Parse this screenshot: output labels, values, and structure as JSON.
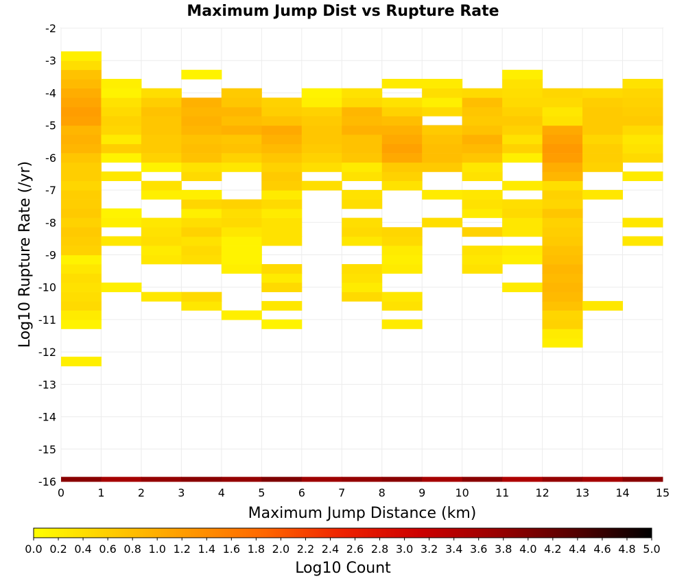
{
  "chart_data": {
    "type": "heatmap",
    "title": "Maximum Jump Dist vs Rupture Rate",
    "xlabel": "Maximum Jump Distance (km)",
    "ylabel": "Log10 Rupture Rate (/yr)",
    "xlim": [
      0,
      15
    ],
    "ylim": [
      -16,
      -2
    ],
    "x_ticks": [
      "0",
      "1",
      "2",
      "3",
      "4",
      "5",
      "6",
      "7",
      "8",
      "9",
      "10",
      "11",
      "12",
      "13",
      "14",
      "15"
    ],
    "y_ticks": [
      "-2",
      "-3",
      "-4",
      "-5",
      "-6",
      "-7",
      "-8",
      "-9",
      "-10",
      "-11",
      "-12",
      "-13",
      "-14",
      "-15",
      "-16"
    ],
    "grid": true,
    "x_bin_width_km": 1,
    "y_bin_height_log10": 0.2857,
    "colorbar": {
      "label": "Log10 Count",
      "min": 0.0,
      "max": 5.0,
      "ticks": [
        "0.0",
        "0.2",
        "0.4",
        "0.6",
        "0.8",
        "1.0",
        "1.2",
        "1.4",
        "1.6",
        "1.8",
        "2.0",
        "2.2",
        "2.4",
        "2.6",
        "2.8",
        "3.0",
        "3.2",
        "3.4",
        "3.6",
        "3.8",
        "4.0",
        "4.2",
        "4.4",
        "4.6",
        "4.8",
        "5.0"
      ],
      "colors": [
        "#ffff00",
        "#ffcc00",
        "#ff9900",
        "#ff6600",
        "#ee2200",
        "#cc0000",
        "#990000",
        "#550000",
        "#000000"
      ]
    },
    "columns": [
      {
        "x": 0.5,
        "cells": [
          [
            -12.29,
            0.2
          ],
          [
            -11.14,
            0.15
          ],
          [
            -10.86,
            0.25
          ],
          [
            -10.57,
            0.45
          ],
          [
            -10.29,
            0.4
          ],
          [
            -10.0,
            0.35
          ],
          [
            -9.71,
            0.4
          ],
          [
            -9.43,
            0.3
          ],
          [
            -9.14,
            0.15
          ],
          [
            -8.86,
            0.55
          ],
          [
            -8.57,
            0.6
          ],
          [
            -8.29,
            0.65
          ],
          [
            -8.0,
            0.55
          ],
          [
            -7.71,
            0.65
          ],
          [
            -7.43,
            0.6
          ],
          [
            -7.14,
            0.6
          ],
          [
            -6.86,
            0.5
          ],
          [
            -6.57,
            0.6
          ],
          [
            -6.29,
            0.6
          ],
          [
            -6.0,
            0.7
          ],
          [
            -5.71,
            0.9
          ],
          [
            -5.43,
            0.95
          ],
          [
            -5.14,
            0.9
          ],
          [
            -4.86,
            1.15
          ],
          [
            -4.57,
            1.2
          ],
          [
            -4.29,
            1.1
          ],
          [
            -4.0,
            1.0
          ],
          [
            -3.71,
            0.85
          ],
          [
            -3.43,
            0.75
          ],
          [
            -3.14,
            0.4
          ],
          [
            -2.86,
            0.2
          ],
          [
            -16.0,
            3.9
          ]
        ]
      },
      {
        "x": 1.5,
        "cells": [
          [
            -10.0,
            0.2
          ],
          [
            -8.57,
            0.3
          ],
          [
            -8.0,
            0.2
          ],
          [
            -7.71,
            0.15
          ],
          [
            -6.57,
            0.3
          ],
          [
            -6.0,
            0.15
          ],
          [
            -5.71,
            0.6
          ],
          [
            -5.43,
            0.25
          ],
          [
            -5.14,
            0.5
          ],
          [
            -4.86,
            0.55
          ],
          [
            -4.57,
            0.45
          ],
          [
            -4.29,
            0.35
          ],
          [
            -4.0,
            0.15
          ],
          [
            -3.71,
            0.2
          ],
          [
            -16.0,
            3.6
          ]
        ]
      },
      {
        "x": 2.5,
        "cells": [
          [
            -10.29,
            0.3
          ],
          [
            -9.14,
            0.3
          ],
          [
            -8.86,
            0.25
          ],
          [
            -8.57,
            0.4
          ],
          [
            -8.29,
            0.35
          ],
          [
            -8.0,
            0.3
          ],
          [
            -7.14,
            0.2
          ],
          [
            -6.86,
            0.35
          ],
          [
            -6.29,
            0.15
          ],
          [
            -6.0,
            0.55
          ],
          [
            -5.71,
            0.65
          ],
          [
            -5.43,
            0.65
          ],
          [
            -5.14,
            0.7
          ],
          [
            -4.86,
            0.7
          ],
          [
            -4.57,
            0.75
          ],
          [
            -4.29,
            0.6
          ],
          [
            -4.0,
            0.4
          ],
          [
            -16.0,
            3.8
          ]
        ]
      },
      {
        "x": 3.5,
        "cells": [
          [
            -10.57,
            0.3
          ],
          [
            -10.29,
            0.45
          ],
          [
            -9.14,
            0.4
          ],
          [
            -8.86,
            0.45
          ],
          [
            -8.57,
            0.35
          ],
          [
            -8.29,
            0.55
          ],
          [
            -8.0,
            0.4
          ],
          [
            -7.71,
            0.2
          ],
          [
            -7.43,
            0.5
          ],
          [
            -7.14,
            0.2
          ],
          [
            -6.57,
            0.45
          ],
          [
            -6.29,
            0.35
          ],
          [
            -6.0,
            0.75
          ],
          [
            -5.71,
            0.8
          ],
          [
            -5.43,
            0.75
          ],
          [
            -5.14,
            0.9
          ],
          [
            -4.86,
            0.95
          ],
          [
            -4.57,
            0.9
          ],
          [
            -4.29,
            0.95
          ],
          [
            -3.43,
            0.15
          ],
          [
            -16.0,
            3.9
          ]
        ]
      },
      {
        "x": 4.5,
        "cells": [
          [
            -10.86,
            0.2
          ],
          [
            -9.43,
            0.2
          ],
          [
            -9.14,
            0.15
          ],
          [
            -8.86,
            0.15
          ],
          [
            -8.57,
            0.15
          ],
          [
            -8.29,
            0.3
          ],
          [
            -8.0,
            0.45
          ],
          [
            -7.71,
            0.4
          ],
          [
            -7.43,
            0.55
          ],
          [
            -6.29,
            0.3
          ],
          [
            -6.0,
            0.55
          ],
          [
            -5.71,
            0.75
          ],
          [
            -5.43,
            0.7
          ],
          [
            -5.14,
            0.95
          ],
          [
            -4.86,
            0.8
          ],
          [
            -4.57,
            0.9
          ],
          [
            -4.29,
            0.7
          ],
          [
            -4.0,
            0.65
          ],
          [
            -16.0,
            3.8
          ]
        ]
      },
      {
        "x": 5.5,
        "cells": [
          [
            -11.14,
            0.15
          ],
          [
            -10.57,
            0.3
          ],
          [
            -10.0,
            0.45
          ],
          [
            -9.71,
            0.25
          ],
          [
            -9.43,
            0.45
          ],
          [
            -8.57,
            0.35
          ],
          [
            -8.29,
            0.35
          ],
          [
            -8.0,
            0.35
          ],
          [
            -7.71,
            0.25
          ],
          [
            -7.43,
            0.45
          ],
          [
            -7.14,
            0.25
          ],
          [
            -6.86,
            0.6
          ],
          [
            -6.57,
            0.65
          ],
          [
            -6.29,
            0.55
          ],
          [
            -6.0,
            0.7
          ],
          [
            -5.71,
            0.85
          ],
          [
            -5.43,
            0.95
          ],
          [
            -5.14,
            1.05
          ],
          [
            -4.86,
            0.75
          ],
          [
            -4.57,
            0.6
          ],
          [
            -4.29,
            0.55
          ],
          [
            -16.0,
            4.0
          ]
        ]
      },
      {
        "x": 6.5,
        "cells": [
          [
            -6.86,
            0.4
          ],
          [
            -6.29,
            0.4
          ],
          [
            -6.0,
            0.55
          ],
          [
            -5.71,
            0.65
          ],
          [
            -5.43,
            0.7
          ],
          [
            -5.14,
            0.7
          ],
          [
            -4.86,
            0.65
          ],
          [
            -4.57,
            0.55
          ],
          [
            -4.29,
            0.2
          ],
          [
            -4.0,
            0.15
          ],
          [
            -16.0,
            3.7
          ]
        ]
      },
      {
        "x": 7.5,
        "cells": [
          [
            -10.29,
            0.45
          ],
          [
            -10.0,
            0.25
          ],
          [
            -9.71,
            0.35
          ],
          [
            -9.43,
            0.4
          ],
          [
            -8.57,
            0.3
          ],
          [
            -8.29,
            0.45
          ],
          [
            -8.0,
            0.4
          ],
          [
            -7.43,
            0.4
          ],
          [
            -7.14,
            0.35
          ],
          [
            -6.57,
            0.35
          ],
          [
            -6.29,
            0.25
          ],
          [
            -6.0,
            0.7
          ],
          [
            -5.71,
            0.75
          ],
          [
            -5.43,
            0.75
          ],
          [
            -5.14,
            0.95
          ],
          [
            -4.86,
            0.85
          ],
          [
            -4.57,
            0.9
          ],
          [
            -4.29,
            0.45
          ],
          [
            -4.0,
            0.35
          ],
          [
            -16.0,
            3.8
          ]
        ]
      },
      {
        "x": 8.5,
        "cells": [
          [
            -11.14,
            0.25
          ],
          [
            -10.57,
            0.35
          ],
          [
            -10.29,
            0.3
          ],
          [
            -9.43,
            0.25
          ],
          [
            -9.14,
            0.2
          ],
          [
            -8.86,
            0.25
          ],
          [
            -8.57,
            0.45
          ],
          [
            -8.29,
            0.5
          ],
          [
            -6.86,
            0.35
          ],
          [
            -6.57,
            0.55
          ],
          [
            -6.29,
            0.65
          ],
          [
            -6.0,
            1.05
          ],
          [
            -5.71,
            1.15
          ],
          [
            -5.43,
            1.05
          ],
          [
            -5.14,
            0.95
          ],
          [
            -4.86,
            0.8
          ],
          [
            -4.57,
            0.55
          ],
          [
            -4.29,
            0.35
          ],
          [
            -3.71,
            0.25
          ],
          [
            -16.0,
            3.9
          ]
        ]
      },
      {
        "x": 9.5,
        "cells": [
          [
            -8.0,
            0.4
          ],
          [
            -7.14,
            0.25
          ],
          [
            -6.29,
            0.65
          ],
          [
            -6.0,
            0.8
          ],
          [
            -5.71,
            0.8
          ],
          [
            -5.43,
            0.75
          ],
          [
            -5.14,
            0.65
          ],
          [
            -4.57,
            0.45
          ],
          [
            -4.29,
            0.2
          ],
          [
            -4.0,
            0.4
          ],
          [
            -3.71,
            0.25
          ],
          [
            -16.0,
            3.6
          ]
        ]
      },
      {
        "x": 10.5,
        "cells": [
          [
            -9.43,
            0.35
          ],
          [
            -9.14,
            0.3
          ],
          [
            -8.86,
            0.35
          ],
          [
            -8.29,
            0.55
          ],
          [
            -7.71,
            0.25
          ],
          [
            -7.43,
            0.35
          ],
          [
            -7.14,
            0.3
          ],
          [
            -6.57,
            0.35
          ],
          [
            -6.29,
            0.3
          ],
          [
            -6.0,
            0.7
          ],
          [
            -5.71,
            0.85
          ],
          [
            -5.43,
            0.95
          ],
          [
            -5.14,
            0.75
          ],
          [
            -4.86,
            0.65
          ],
          [
            -4.57,
            0.7
          ],
          [
            -4.29,
            0.8
          ],
          [
            -4.0,
            0.45
          ],
          [
            -16.0,
            3.9
          ]
        ]
      },
      {
        "x": 11.5,
        "cells": [
          [
            -10.0,
            0.25
          ],
          [
            -9.14,
            0.2
          ],
          [
            -8.86,
            0.25
          ],
          [
            -8.29,
            0.3
          ],
          [
            -8.0,
            0.3
          ],
          [
            -7.71,
            0.45
          ],
          [
            -7.43,
            0.4
          ],
          [
            -6.86,
            0.25
          ],
          [
            -6.0,
            0.2
          ],
          [
            -5.71,
            0.55
          ],
          [
            -5.43,
            0.35
          ],
          [
            -5.14,
            0.55
          ],
          [
            -4.86,
            0.65
          ],
          [
            -4.57,
            0.55
          ],
          [
            -4.29,
            0.45
          ],
          [
            -4.0,
            0.4
          ],
          [
            -3.71,
            0.35
          ],
          [
            -3.43,
            0.2
          ],
          [
            -16.0,
            3.5
          ]
        ]
      },
      {
        "x": 12.5,
        "cells": [
          [
            -11.71,
            0.2
          ],
          [
            -11.43,
            0.25
          ],
          [
            -11.14,
            0.55
          ],
          [
            -10.86,
            0.5
          ],
          [
            -10.57,
            0.75
          ],
          [
            -10.29,
            0.85
          ],
          [
            -10.0,
            0.9
          ],
          [
            -9.71,
            0.85
          ],
          [
            -9.43,
            0.9
          ],
          [
            -9.14,
            0.8
          ],
          [
            -8.86,
            0.75
          ],
          [
            -8.57,
            0.65
          ],
          [
            -8.29,
            0.6
          ],
          [
            -8.0,
            0.55
          ],
          [
            -7.71,
            0.7
          ],
          [
            -7.43,
            0.5
          ],
          [
            -7.14,
            0.55
          ],
          [
            -6.86,
            0.4
          ],
          [
            -6.57,
            0.9
          ],
          [
            -6.29,
            1.0
          ],
          [
            -6.0,
            1.2
          ],
          [
            -5.71,
            1.25
          ],
          [
            -5.43,
            1.15
          ],
          [
            -5.14,
            1.05
          ],
          [
            -4.86,
            0.35
          ],
          [
            -4.57,
            0.3
          ],
          [
            -4.29,
            0.45
          ],
          [
            -4.0,
            0.5
          ],
          [
            -16.0,
            3.8
          ]
        ]
      },
      {
        "x": 13.5,
        "cells": [
          [
            -10.57,
            0.3
          ],
          [
            -7.14,
            0.3
          ],
          [
            -6.29,
            0.55
          ],
          [
            -6.0,
            0.6
          ],
          [
            -5.71,
            0.6
          ],
          [
            -5.43,
            0.5
          ],
          [
            -5.14,
            0.65
          ],
          [
            -4.86,
            0.65
          ],
          [
            -4.57,
            0.65
          ],
          [
            -4.29,
            0.6
          ],
          [
            -4.0,
            0.45
          ],
          [
            -16.0,
            3.6
          ]
        ]
      },
      {
        "x": 14.5,
        "cells": [
          [
            -8.57,
            0.3
          ],
          [
            -8.0,
            0.3
          ],
          [
            -6.57,
            0.25
          ],
          [
            -6.0,
            0.45
          ],
          [
            -5.71,
            0.35
          ],
          [
            -5.43,
            0.3
          ],
          [
            -5.14,
            0.45
          ],
          [
            -4.86,
            0.65
          ],
          [
            -4.57,
            0.6
          ],
          [
            -4.29,
            0.55
          ],
          [
            -4.0,
            0.5
          ],
          [
            -3.71,
            0.35
          ],
          [
            -16.0,
            3.9
          ]
        ]
      }
    ]
  }
}
